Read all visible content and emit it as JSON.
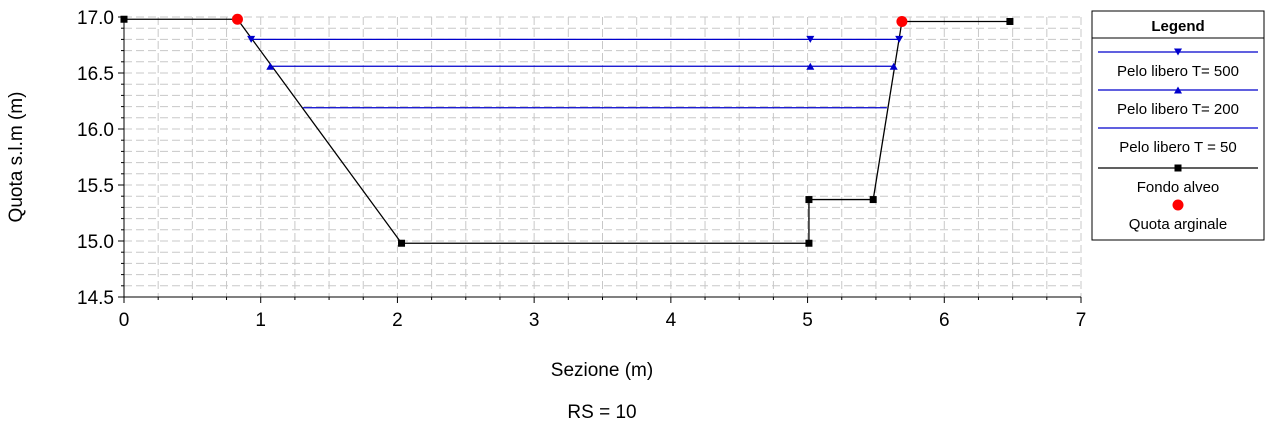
{
  "chart_data": {
    "type": "line",
    "title": "",
    "xlabel": "Sezione (m)",
    "ylabel": "Quota s.l.m (m)",
    "caption": "RS = 10",
    "xlim": [
      0,
      7
    ],
    "ylim": [
      14.5,
      17.0
    ],
    "xticks": [
      "0",
      "1",
      "2",
      "3",
      "4",
      "5",
      "6",
      "7"
    ],
    "yticks": [
      "14.5",
      "15.0",
      "15.5",
      "16.0",
      "16.5",
      "17.0"
    ],
    "grid": true,
    "legend_title": "Legend",
    "legend_position": "right",
    "series": [
      {
        "name": "Pelo libero T= 500",
        "color": "#0000cc",
        "marker": "triangle-down",
        "x": [
          0.93,
          5.02,
          5.67
        ],
        "y": [
          16.8,
          16.8,
          16.8
        ]
      },
      {
        "name": "Pelo libero T= 200",
        "color": "#0000cc",
        "marker": "triangle-up",
        "x": [
          1.07,
          5.02,
          5.63
        ],
        "y": [
          16.56,
          16.56,
          16.56
        ]
      },
      {
        "name": "Pelo libero T = 50",
        "color": "#0000cc",
        "marker": "none",
        "x": [
          1.31,
          5.58
        ],
        "y": [
          16.19,
          16.19
        ]
      },
      {
        "name": "Fondo alveo",
        "color": "#000000",
        "marker": "square",
        "x": [
          0.0,
          0.83,
          2.03,
          5.01,
          5.01,
          5.48,
          5.69,
          6.48
        ],
        "y": [
          16.98,
          16.98,
          14.98,
          14.98,
          15.37,
          15.37,
          16.96,
          16.96
        ]
      },
      {
        "name": "Quota arginale",
        "color": "#ff0000",
        "marker": "circle",
        "style": "points",
        "x": [
          0.83,
          5.69
        ],
        "y": [
          16.98,
          16.96
        ]
      }
    ]
  }
}
